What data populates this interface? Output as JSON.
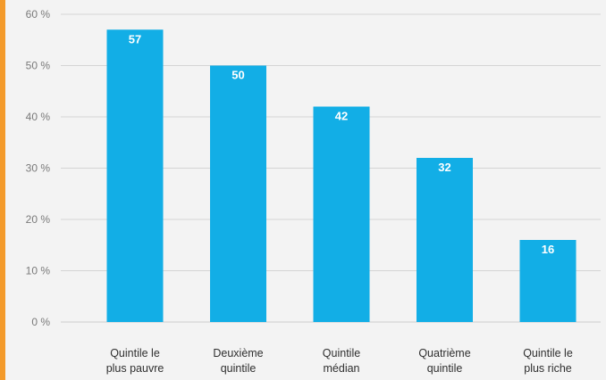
{
  "colors": {
    "bar": "#12aee6",
    "accent": "#f39a2b",
    "grid": "#d4d4d4",
    "background": "#f3f3f3"
  },
  "chart_data": {
    "type": "bar",
    "categories": [
      [
        "Quintile le",
        "plus pauvre"
      ],
      [
        "Deuxième",
        "quintile"
      ],
      [
        "Quintile",
        "médian"
      ],
      [
        "Quatrième",
        "quintile"
      ],
      [
        "Quintile le",
        "plus riche"
      ]
    ],
    "values": [
      57,
      50,
      42,
      32,
      16
    ],
    "data_labels": [
      "57",
      "50",
      "42",
      "32",
      "16"
    ],
    "yticks": [
      0,
      10,
      20,
      30,
      40,
      50,
      60
    ],
    "ytick_labels": [
      "0 %",
      "10 %",
      "20 %",
      "30 %",
      "40 %",
      "50 %",
      "60 %"
    ],
    "ylim": [
      0,
      60
    ],
    "grid": true,
    "title": "",
    "xlabel": "",
    "ylabel": ""
  }
}
